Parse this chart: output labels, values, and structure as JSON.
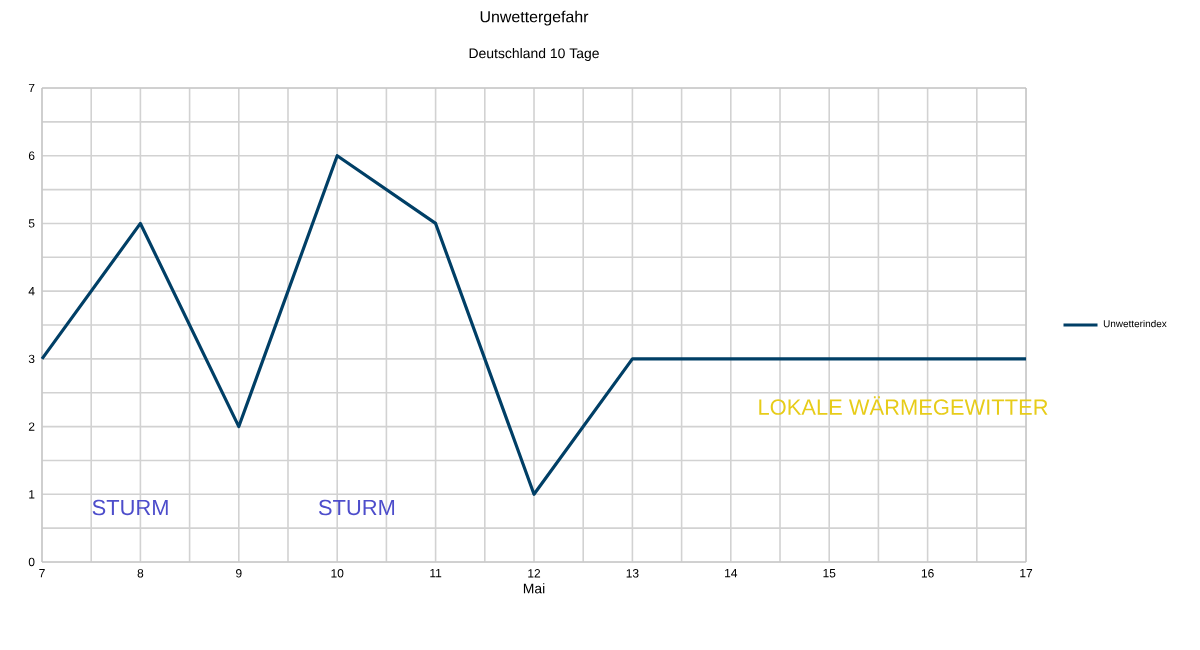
{
  "chart_data": {
    "type": "line",
    "title": "Unwettergefahr",
    "subtitle": "Deutschland 10 Tage",
    "xlabel": "Mai",
    "x": [
      7,
      8,
      9,
      10,
      11,
      12,
      13,
      14,
      15,
      16,
      17
    ],
    "series": [
      {
        "name": "Unwetterindex",
        "color": "#003f66",
        "values": [
          3,
          5,
          2,
          6,
          5,
          1,
          3,
          3,
          3,
          3,
          3
        ]
      }
    ],
    "xlim": [
      7,
      17
    ],
    "xticks": [
      7,
      8,
      9,
      10,
      11,
      12,
      13,
      14,
      15,
      16,
      17
    ],
    "ylim": [
      0,
      7
    ],
    "yticks": [
      0,
      1,
      2,
      3,
      4,
      5,
      6,
      7
    ],
    "grid": true,
    "legend": "right",
    "marker": "none",
    "line_style": "solid",
    "annotations": [
      "STURM",
      "STURM",
      "LOKALE WÄRMEGEWITTER"
    ]
  }
}
